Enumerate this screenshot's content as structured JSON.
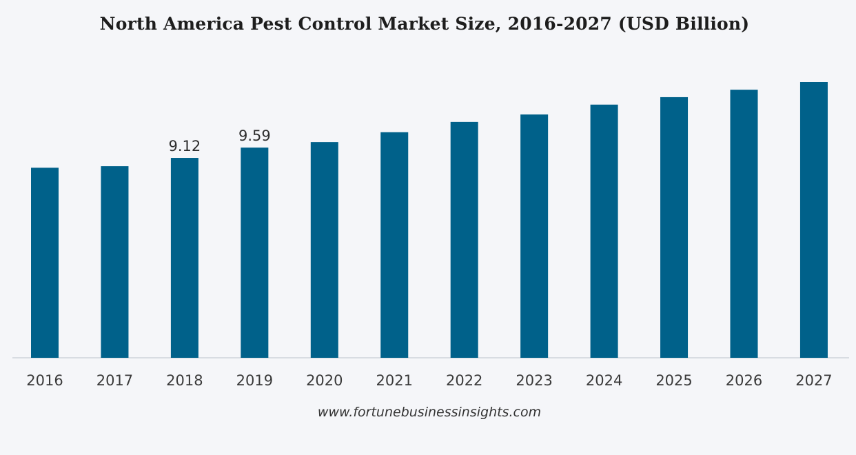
{
  "chart_data": {
    "type": "bar",
    "title": "North America Pest Control Market Size, 2016-2027 (USD Billion)",
    "xlabel": "",
    "ylabel": "",
    "categories": [
      "2016",
      "2017",
      "2018",
      "2019",
      "2020",
      "2021",
      "2022",
      "2023",
      "2024",
      "2025",
      "2026",
      "2027"
    ],
    "values": [
      8.67,
      8.74,
      9.12,
      9.59,
      9.84,
      10.29,
      10.76,
      11.1,
      11.55,
      11.89,
      12.23,
      12.58
    ],
    "data_labels": [
      {
        "category": "2018",
        "text": "9.12"
      },
      {
        "category": "2019",
        "text": "9.59"
      }
    ],
    "ylim": [
      0,
      12.58
    ],
    "grid": false,
    "legend": "none",
    "bar_color": "#00618a"
  },
  "source": "www.fortunebusinessinsights.com",
  "colors": {
    "background": "#f5f6f9",
    "bar": "#00618a",
    "axis": "#cfd3da"
  }
}
